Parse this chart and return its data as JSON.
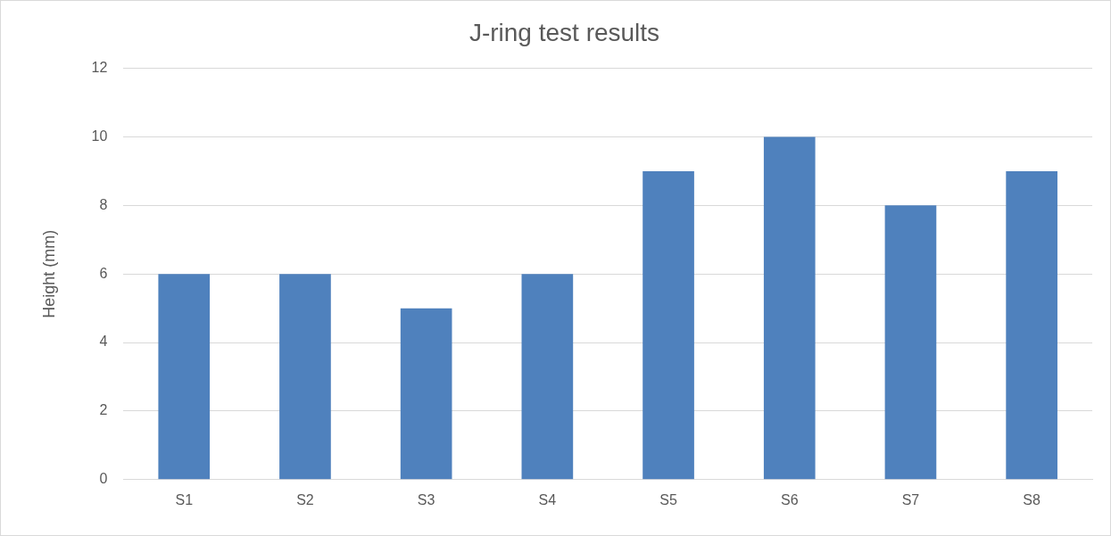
{
  "chart_data": {
    "type": "bar",
    "title": "J-ring test results",
    "ylabel": "Height (mm)",
    "categories": [
      "S1",
      "S2",
      "S3",
      "S4",
      "S5",
      "S6",
      "S7",
      "S8"
    ],
    "values": [
      6,
      6,
      5,
      6,
      9,
      10,
      8,
      9
    ],
    "color": "#4f81bd",
    "ylim": [
      0,
      12
    ],
    "yticks": [
      0,
      2,
      4,
      6,
      8,
      10,
      12
    ],
    "grid": "y",
    "legend": false
  }
}
